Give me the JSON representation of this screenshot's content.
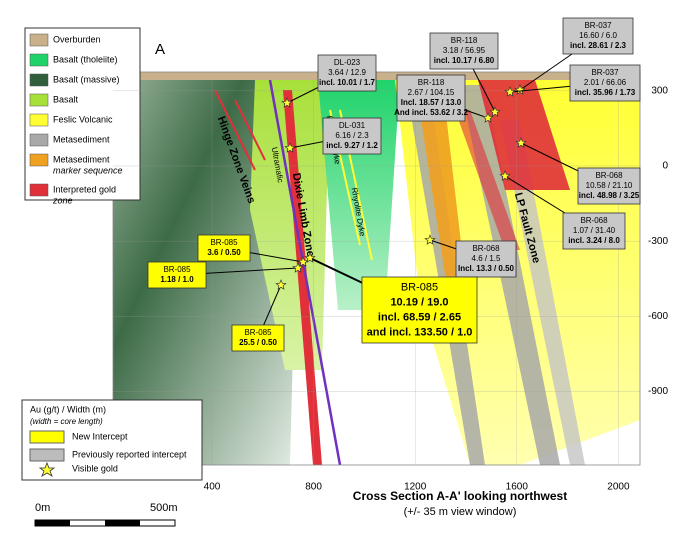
{
  "section": {
    "left_label": "A",
    "right_label": "A'",
    "title": "Cross Section A-A' looking northwest",
    "subtitle": "(+/- 35 m view window)"
  },
  "axes": {
    "xticks": [
      400,
      800,
      1200,
      1600,
      2000
    ],
    "yticks": [
      300,
      0,
      -300,
      -600,
      -900
    ]
  },
  "legend": {
    "items": [
      {
        "lines": [
          "Overburden"
        ],
        "color": "#c8b08a"
      },
      {
        "lines": [
          "Basalt (tholeiite)"
        ],
        "color": "#1fd36a"
      },
      {
        "lines": [
          "Basalt (massive)"
        ],
        "color": "#2f5f3b"
      },
      {
        "lines": [
          "Basalt"
        ],
        "color": "#a8e03a"
      },
      {
        "lines": [
          "Feslic Volcanic"
        ],
        "color": "#ffff33"
      },
      {
        "lines": [
          "Metasediment"
        ],
        "color": "#a8a8a8"
      },
      {
        "lines": [
          "Metasediment",
          "marker sequence"
        ],
        "color": "#f0a020"
      },
      {
        "lines": [
          "Interpreted gold",
          "zone"
        ],
        "color": "#e0303a"
      }
    ]
  },
  "key": {
    "title": "Au (g/t) / Width (m)",
    "note": "(width = core length)",
    "items": [
      "New Intercept",
      "Previously reported  intercept",
      "Visible gold"
    ]
  },
  "scale": {
    "start": "0m",
    "end": "500m"
  },
  "features": [
    "Hinge Zone Veins",
    "Ultramafic",
    "Dixie Limb Zone",
    "Rhyolite Dyke",
    "Rhyolite Dyke",
    "LP Fault Zone"
  ],
  "intercepts": [
    {
      "hole": "BR-037",
      "lines": [
        "16.60 / 6.0",
        "incl. 28.61 / 2.3"
      ],
      "new": false
    },
    {
      "hole": "BR-118",
      "lines": [
        "3.18 / 56.95",
        "incl. 10.17 / 6.80"
      ],
      "new": false
    },
    {
      "hole": "DL-023",
      "lines": [
        "3.64 / 12.9",
        "incl. 10.01 / 1.7"
      ],
      "new": false
    },
    {
      "hole": "BR-037",
      "lines": [
        "2.01 / 66.06",
        "incl. 35.96 / 1.73"
      ],
      "new": false
    },
    {
      "hole": "BR-118",
      "lines": [
        "2.67 / 104.15",
        "Incl. 18.57 / 13.0",
        "And incl. 53.62 / 3.2"
      ],
      "new": false
    },
    {
      "hole": "DL-031",
      "lines": [
        "6.16 / 2.3",
        "incl. 9.27 / 1.2"
      ],
      "new": false
    },
    {
      "hole": "BR-068",
      "lines": [
        "10.58 / 21.10",
        "incl. 48.98 / 3.25"
      ],
      "new": false
    },
    {
      "hole": "BR-068",
      "lines": [
        "1.07 / 31.40",
        "incl. 3.24 / 8.0"
      ],
      "new": false
    },
    {
      "hole": "BR-085",
      "lines": [
        "3.6 / 0.50"
      ],
      "new": true
    },
    {
      "hole": "BR-068",
      "lines": [
        "4.6 / 1.5",
        "Incl. 13.3 / 0.50"
      ],
      "new": false
    },
    {
      "hole": "BR-085",
      "lines": [
        "1.18 / 1.0"
      ],
      "new": true
    },
    {
      "hole": "BR-085",
      "lines": [
        "10.19 / 19.0",
        "incl. 68.59 / 2.65",
        "and incl. 133.50 / 1.0"
      ],
      "new": true
    },
    {
      "hole": "BR-085",
      "lines": [
        "25.5 / 0.50"
      ],
      "new": true
    }
  ]
}
